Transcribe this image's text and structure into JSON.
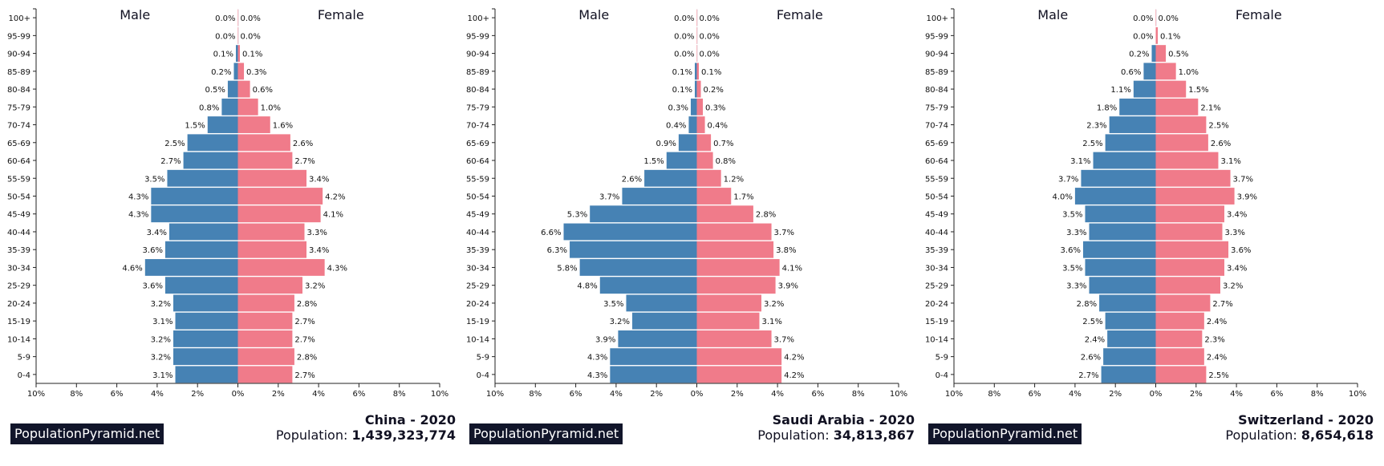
{
  "brand": "PopulationPyramid.net",
  "colors": {
    "male": "#4682b4",
    "female": "#f07b8a"
  },
  "chart_data": [
    {
      "type": "bar",
      "orientation": "horizontal-population-pyramid",
      "country": "China",
      "year": "2020",
      "title": "China - 2020",
      "population_label": "Population:",
      "population": "1,439,323,774",
      "categories": [
        "0-4",
        "5-9",
        "10-14",
        "15-19",
        "20-24",
        "25-29",
        "30-34",
        "35-39",
        "40-44",
        "45-49",
        "50-54",
        "55-59",
        "60-64",
        "65-69",
        "70-74",
        "75-79",
        "80-84",
        "85-89",
        "90-94",
        "95-99",
        "100+"
      ],
      "series": [
        {
          "name": "Male",
          "values": [
            3.1,
            3.2,
            3.2,
            3.1,
            3.2,
            3.6,
            4.6,
            3.6,
            3.4,
            4.3,
            4.3,
            3.5,
            2.7,
            2.5,
            1.5,
            0.8,
            0.5,
            0.2,
            0.1,
            0.0,
            0.0
          ]
        },
        {
          "name": "Female",
          "values": [
            2.7,
            2.8,
            2.7,
            2.7,
            2.8,
            3.2,
            4.3,
            3.4,
            3.3,
            4.1,
            4.2,
            3.4,
            2.7,
            2.6,
            1.6,
            1.0,
            0.6,
            0.3,
            0.1,
            0.0,
            0.0
          ]
        }
      ],
      "xlim": [
        -10,
        10
      ],
      "xticks": [
        "10%",
        "8%",
        "6%",
        "4%",
        "2%",
        "0%",
        "2%",
        "4%",
        "6%",
        "8%",
        "10%"
      ],
      "grid": false
    },
    {
      "type": "bar",
      "orientation": "horizontal-population-pyramid",
      "country": "Saudi Arabia",
      "year": "2020",
      "title": "Saudi Arabia - 2020",
      "population_label": "Population:",
      "population": "34,813,867",
      "categories": [
        "0-4",
        "5-9",
        "10-14",
        "15-19",
        "20-24",
        "25-29",
        "30-34",
        "35-39",
        "40-44",
        "45-49",
        "50-54",
        "55-59",
        "60-64",
        "65-69",
        "70-74",
        "75-79",
        "80-84",
        "85-89",
        "90-94",
        "95-99",
        "100+"
      ],
      "series": [
        {
          "name": "Male",
          "values": [
            4.3,
            4.3,
            3.9,
            3.2,
            3.5,
            4.8,
            5.8,
            6.3,
            6.6,
            5.3,
            3.7,
            2.6,
            1.5,
            0.9,
            0.4,
            0.3,
            0.1,
            0.1,
            0.0,
            0.0,
            0.0
          ]
        },
        {
          "name": "Female",
          "values": [
            4.2,
            4.2,
            3.7,
            3.1,
            3.2,
            3.9,
            4.1,
            3.8,
            3.7,
            2.8,
            1.7,
            1.2,
            0.8,
            0.7,
            0.4,
            0.3,
            0.2,
            0.1,
            0.0,
            0.0,
            0.0
          ]
        }
      ],
      "xlim": [
        -10,
        10
      ],
      "xticks": [
        "10%",
        "8%",
        "6%",
        "4%",
        "2%",
        "0%",
        "2%",
        "4%",
        "6%",
        "8%",
        "10%"
      ],
      "grid": false
    },
    {
      "type": "bar",
      "orientation": "horizontal-population-pyramid",
      "country": "Switzerland",
      "year": "2020",
      "title": "Switzerland - 2020",
      "population_label": "Population:",
      "population": "8,654,618",
      "categories": [
        "0-4",
        "5-9",
        "10-14",
        "15-19",
        "20-24",
        "25-29",
        "30-34",
        "35-39",
        "40-44",
        "45-49",
        "50-54",
        "55-59",
        "60-64",
        "65-69",
        "70-74",
        "75-79",
        "80-84",
        "85-89",
        "90-94",
        "95-99",
        "100+"
      ],
      "series": [
        {
          "name": "Male",
          "values": [
            2.7,
            2.6,
            2.4,
            2.5,
            2.8,
            3.3,
            3.5,
            3.6,
            3.3,
            3.5,
            4.0,
            3.7,
            3.1,
            2.5,
            2.3,
            1.8,
            1.1,
            0.6,
            0.2,
            0.0,
            0.0
          ]
        },
        {
          "name": "Female",
          "values": [
            2.5,
            2.4,
            2.3,
            2.4,
            2.7,
            3.2,
            3.4,
            3.6,
            3.3,
            3.4,
            3.9,
            3.7,
            3.1,
            2.6,
            2.5,
            2.1,
            1.5,
            1.0,
            0.5,
            0.1,
            0.0
          ]
        }
      ],
      "xlim": [
        -10,
        10
      ],
      "xticks": [
        "10%",
        "8%",
        "6%",
        "4%",
        "2%",
        "0%",
        "2%",
        "4%",
        "6%",
        "8%",
        "10%"
      ],
      "grid": false
    }
  ]
}
